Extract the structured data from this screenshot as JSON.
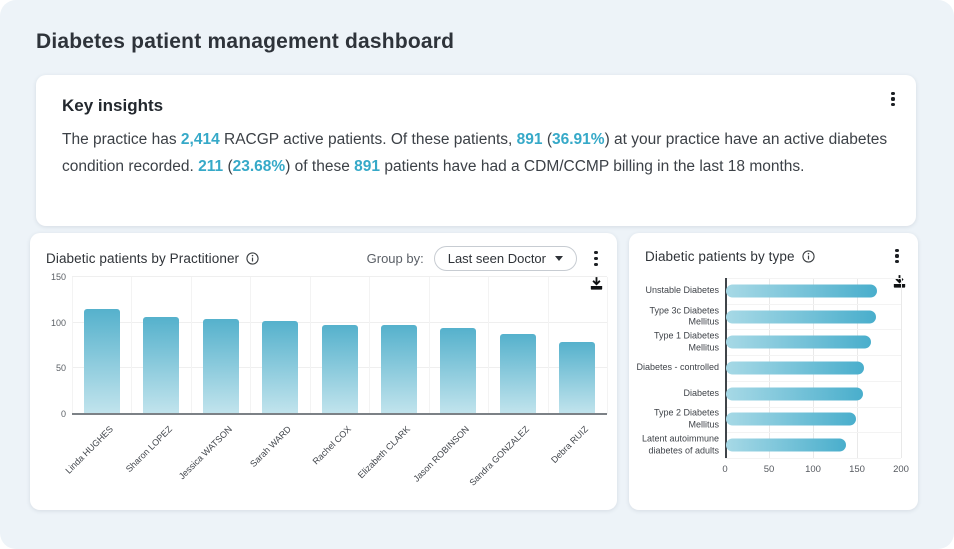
{
  "page": {
    "title": "Diabetes patient management dashboard",
    "background": "#edf3f8",
    "accent_color": "#36a9c8"
  },
  "insights": {
    "title": "Key insights",
    "menu_icon": "kebab-menu-icon",
    "segments": [
      {
        "text": "The practice has ",
        "highlight": false
      },
      {
        "text": "2,414",
        "highlight": true
      },
      {
        "text": " RACGP active patients. Of these patients, ",
        "highlight": false
      },
      {
        "text": "891",
        "highlight": true
      },
      {
        "text": " (",
        "highlight": false
      },
      {
        "text": "36.91%",
        "highlight": true
      },
      {
        "text": ") at your practice have an active diabetes condition recorded. ",
        "highlight": false
      },
      {
        "text": "211",
        "highlight": true
      },
      {
        "text": " (",
        "highlight": false
      },
      {
        "text": "23.68%",
        "highlight": true
      },
      {
        "text": ") of these ",
        "highlight": false
      },
      {
        "text": "891",
        "highlight": true
      },
      {
        "text": " patients have had a CDM/CCMP billing in the last 18 months.",
        "highlight": false
      }
    ]
  },
  "group_by": {
    "label": "Group by:",
    "selected_option": "Last seen Doctor"
  },
  "chart_data": [
    {
      "id": "diabetic-patients-by-practitioner",
      "type": "bar",
      "title": "Diabetic patients by Practitioner",
      "categories": [
        "Linda HUGHES",
        "Sharon LOPEZ",
        "Jessica WATSON",
        "Sarah WARD",
        "Rachel COX",
        "Elizabeth CLARK",
        "Jason ROBINSON",
        "Sandra GONZALEZ",
        "Debra RUIZ"
      ],
      "values": [
        115,
        106,
        104,
        102,
        98,
        97,
        94,
        88,
        79
      ],
      "xlabel": "",
      "ylabel": "",
      "ylim": [
        0,
        150
      ],
      "yticks": [
        0,
        50,
        100,
        150
      ],
      "grid": true,
      "legend": "none",
      "bar_color_top": "#55b1cc",
      "bar_color_bottom": "#c2e4ed"
    },
    {
      "id": "diabetic-patients-by-type",
      "type": "bar",
      "orientation": "horizontal",
      "title": "Diabetic patients by type",
      "categories": [
        "Unstable Diabetes",
        "Type 3c Diabetes Mellitus",
        "Type 1 Diabetes Mellitus",
        "Diabetes - controlled",
        "Diabetes",
        "Type 2 Diabetes Mellitus",
        "Latent autoimmune diabetes of adults"
      ],
      "values": [
        172,
        171,
        165,
        157,
        156,
        148,
        136
      ],
      "xlabel": "",
      "ylabel": "",
      "xlim": [
        0,
        200
      ],
      "xticks": [
        0,
        50,
        100,
        150,
        200
      ],
      "grid": true,
      "legend": "none",
      "bar_color_left": "#a7d9e6",
      "bar_color_right": "#49aecc"
    }
  ]
}
